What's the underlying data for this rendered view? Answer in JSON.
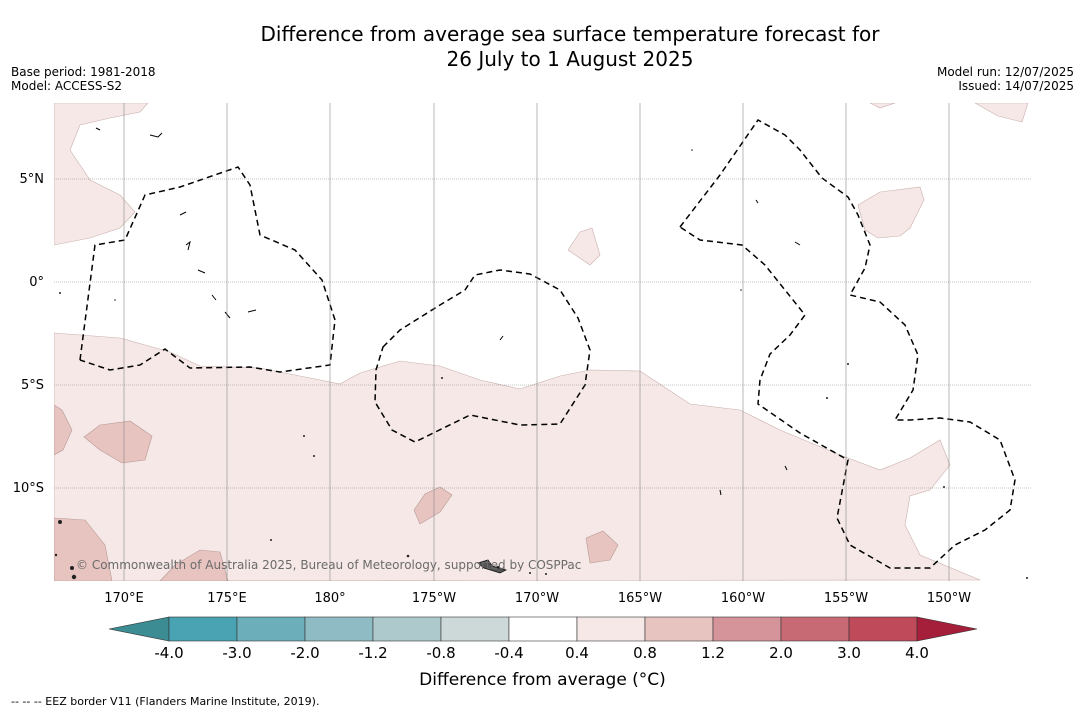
{
  "title": {
    "line1": "Difference from average sea surface temperature forecast for",
    "line2": "26 July to 1 August 2025"
  },
  "meta_left": {
    "base_period": "Base period: 1981-2018",
    "model": "Model: ACCESS-S2"
  },
  "meta_right": {
    "model_run": "Model run: 12/07/2025",
    "issued": "Issued: 14/07/2025"
  },
  "map": {
    "lon_labels": [
      "170°E",
      "175°E",
      "180°",
      "175°W",
      "170°W",
      "165°W",
      "160°W",
      "155°W",
      "150°W"
    ],
    "lat_labels": [
      "5°N",
      "0°",
      "5°S",
      "10°S"
    ],
    "copyright": "© Commonwealth of Australia 2025, Bureau of Meteorology, supported by COSPPac"
  },
  "colorbar": {
    "ticks": [
      "-4.0",
      "-3.0",
      "-2.0",
      "-1.2",
      "-0.8",
      "-0.4",
      "0.4",
      "0.8",
      "1.2",
      "2.0",
      "3.0",
      "4.0"
    ],
    "colors": {
      "under": "#3b8c93",
      "bins": [
        "#4aa3b3",
        "#6daebb",
        "#8ebbc4",
        "#adc9cc",
        "#cdd8d8",
        "#ffffff",
        "#f5e8e6",
        "#e7c4c0",
        "#d5939a",
        "#c86a74",
        "#be4a5a"
      ],
      "over": "#a51e3a"
    },
    "label": "Difference from average (°C)"
  },
  "legend_footnote": "--  --  -- EEZ border V11 (Flanders Marine Institute, 2019)."
}
